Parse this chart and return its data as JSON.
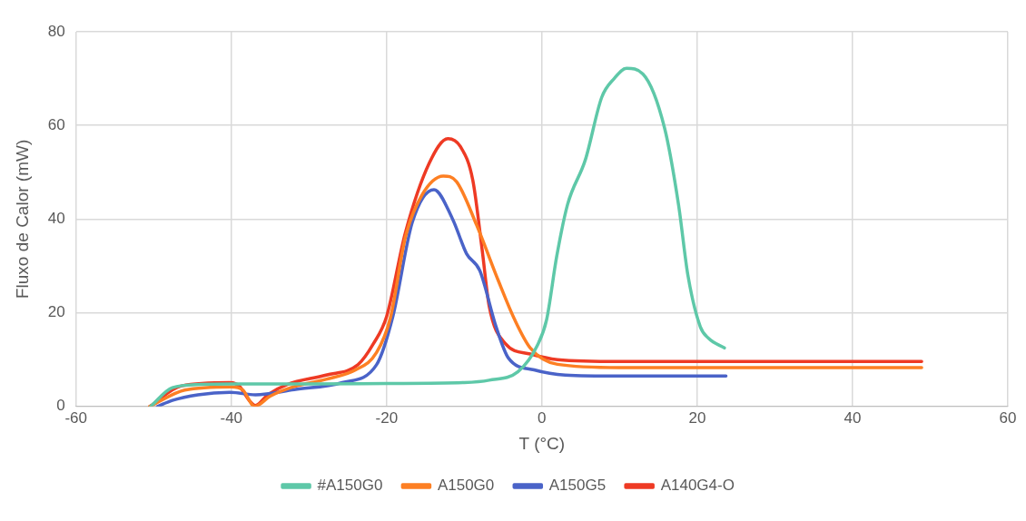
{
  "chart_data": {
    "type": "line",
    "xlabel": "T (°C)",
    "ylabel": "Fluxo de Calor (mW)",
    "xlim": [
      -60,
      60
    ],
    "xticks": [
      -60,
      -40,
      -20,
      0,
      20,
      40,
      60
    ],
    "ylim": [
      0,
      80
    ],
    "yticks": [
      0,
      20,
      40,
      60,
      80
    ],
    "grid": true,
    "legend": "bottom",
    "marker": "none",
    "line_style": "solid",
    "series": [
      {
        "name": "#A150G0",
        "color": "#5ec8a8",
        "x": [
          -50.4,
          -47.6,
          -43.9,
          -40,
          -30,
          -20,
          -10,
          -6.8,
          -3.1,
          -0.6,
          0.6,
          1.9,
          3.3,
          5.6,
          7.7,
          9.3,
          10.9,
          13,
          15.8,
          17.6,
          18.8,
          20.4,
          21.5,
          23.5
        ],
        "values": [
          0,
          4,
          4.7,
          4.8,
          4.8,
          4.9,
          5.1,
          5.6,
          7.4,
          13,
          18.5,
          32,
          43.1,
          52.7,
          66,
          70,
          72.2,
          71,
          59.4,
          43,
          28,
          17,
          14.5,
          12.5
        ]
      },
      {
        "name": "A150G0",
        "color": "#fd7f23",
        "x": [
          -50.5,
          -46,
          -40,
          -38.5,
          -37,
          -35,
          -32,
          -27.8,
          -24,
          -21.3,
          -19.5,
          -17.6,
          -15.5,
          -12.7,
          -11,
          -8.4,
          -5.6,
          -3.5,
          -1.5,
          2,
          10,
          20,
          30,
          48.9
        ],
        "values": [
          0,
          3.5,
          4.2,
          3.5,
          0,
          2.2,
          4.2,
          5.8,
          7.8,
          11.5,
          19,
          36,
          45,
          49.2,
          48,
          38.7,
          26.8,
          18.5,
          12.5,
          9,
          8.3,
          8.3,
          8.3,
          8.3
        ]
      },
      {
        "name": "A150G5",
        "color": "#4a63c8",
        "x": [
          -49.5,
          -47.6,
          -44.3,
          -40.2,
          -36.9,
          -31.9,
          -25.7,
          -21.3,
          -19.2,
          -16.7,
          -13.9,
          -11.5,
          -9.7,
          -8,
          -5.9,
          -4.3,
          -1,
          3,
          10,
          23.7
        ],
        "values": [
          0,
          1.3,
          2.5,
          3,
          2.5,
          3.6,
          5.1,
          8.9,
          19.2,
          39.3,
          46.3,
          40,
          32.6,
          29,
          17,
          10.3,
          7.8,
          6.7,
          6.5,
          6.5
        ]
      },
      {
        "name": "A140G4-O",
        "color": "#ee3a24",
        "x": [
          -50.5,
          -46.4,
          -40.2,
          -39,
          -37.7,
          -36.9,
          -35.3,
          -32.8,
          -27.8,
          -23.7,
          -21.7,
          -20,
          -17.6,
          -14.5,
          -12.1,
          -10.5,
          -8.9,
          -7.7,
          -6.8,
          -4.7,
          -1.5,
          2,
          10,
          20,
          30,
          48.9
        ],
        "values": [
          0,
          4.4,
          5.1,
          4.4,
          1.3,
          0.2,
          2.5,
          4.7,
          6.7,
          8.9,
          13.4,
          19.2,
          37,
          52,
          57.2,
          55.5,
          48.3,
          33.5,
          21.5,
          13.4,
          11.2,
          10,
          9.6,
          9.6,
          9.6,
          9.6
        ]
      }
    ]
  }
}
